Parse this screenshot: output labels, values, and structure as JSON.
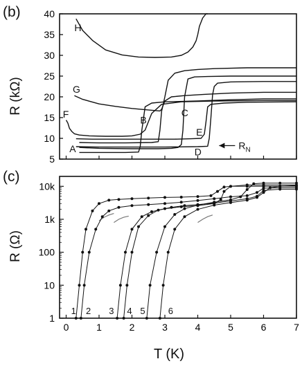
{
  "figure": {
    "panel_b_label": "(b)",
    "panel_c_label": "(c)"
  },
  "chart_data": [
    {
      "type": "line",
      "panel": "(b)",
      "xlabel": "",
      "ylabel": "R (kΩ)",
      "xlim": [
        -0.2,
        7.0
      ],
      "ylim": [
        5,
        40
      ],
      "y_ticks": [
        5,
        10,
        15,
        20,
        25,
        30,
        35,
        40
      ],
      "y_tick_labels": [
        "5",
        "10",
        "15",
        "20",
        "25",
        "30",
        "35",
        "40"
      ],
      "grid": false,
      "series": [
        {
          "name": "H",
          "x": [
            0.3,
            0.5,
            0.8,
            1.2,
            1.7,
            2.2,
            2.7,
            3.2,
            3.5,
            3.7,
            3.85,
            3.95,
            4.0,
            4.05,
            4.15,
            4.25,
            4.3
          ],
          "y": [
            38.8,
            36.0,
            33.6,
            31.3,
            30.1,
            29.6,
            29.5,
            29.6,
            30.0,
            30.8,
            32.0,
            33.5,
            35.0,
            37.0,
            39.0,
            40.0,
            40.0
          ]
        },
        {
          "name": "G",
          "x": [
            0.25,
            0.5,
            1.0,
            1.5,
            2.0,
            2.4,
            2.7,
            2.85,
            2.9,
            3.0,
            3.2,
            3.6,
            4.2,
            5.0,
            6.0,
            7.0
          ],
          "y": [
            20.3,
            19.4,
            18.3,
            17.7,
            17.2,
            16.9,
            16.7,
            16.6,
            17.0,
            19.0,
            20.0,
            20.3,
            20.6,
            20.9,
            21.1,
            21.1
          ]
        },
        {
          "name": "F",
          "x": [
            0.0,
            0.05,
            0.1,
            0.18,
            0.25,
            0.4,
            0.7,
            1.2,
            1.7,
            2.0,
            2.25,
            2.4,
            2.6,
            2.9,
            3.5,
            4.5,
            6.0,
            7.0
          ],
          "y": [
            14.4,
            13.7,
            12.4,
            11.6,
            11.1,
            10.8,
            10.6,
            10.5,
            10.5,
            10.6,
            11.0,
            12.0,
            16.0,
            18.2,
            18.8,
            19.0,
            19.1,
            19.1
          ]
        },
        {
          "name": "E",
          "x": [
            0.3,
            0.8,
            1.5,
            2.2,
            2.8,
            3.3,
            3.8,
            4.1,
            4.2,
            4.25,
            4.3,
            4.4,
            4.8,
            5.5,
            7.0
          ],
          "y": [
            9.9,
            9.8,
            9.8,
            9.8,
            9.8,
            9.8,
            9.9,
            10.0,
            11.0,
            14.0,
            17.6,
            18.2,
            18.5,
            18.7,
            18.8
          ]
        },
        {
          "name": "D",
          "x": [
            0.3,
            1.0,
            2.0,
            3.0,
            4.0,
            4.3,
            4.35,
            4.4,
            4.45,
            4.5,
            4.6,
            5.0,
            6.0,
            7.0
          ],
          "y": [
            8.0,
            7.9,
            7.9,
            7.9,
            8.0,
            8.1,
            10.0,
            15.0,
            20.5,
            22.5,
            23.3,
            23.6,
            23.7,
            23.7
          ]
        },
        {
          "name": "C",
          "x": [
            0.4,
            1.0,
            2.0,
            2.8,
            3.2,
            3.4,
            3.5,
            3.55,
            3.6,
            3.7,
            3.9,
            4.3,
            5.0,
            6.0,
            7.0
          ],
          "y": [
            7.8,
            7.6,
            7.5,
            7.5,
            7.6,
            7.8,
            8.5,
            12.0,
            20.0,
            24.3,
            24.8,
            24.9,
            25.0,
            25.0,
            25.0
          ]
        },
        {
          "name": "B",
          "x": [
            0.4,
            1.0,
            1.8,
            2.6,
            2.8,
            2.85,
            2.9,
            3.0,
            3.1,
            3.3,
            3.6,
            4.0,
            4.5,
            5.5,
            7.0
          ],
          "y": [
            9.0,
            8.9,
            8.9,
            9.0,
            9.2,
            12.0,
            16.5,
            20.0,
            24.0,
            25.7,
            26.3,
            26.6,
            26.8,
            27.0,
            27.0
          ]
        },
        {
          "name": "A",
          "x": [
            0.4,
            1.0,
            1.8,
            2.2,
            2.25,
            2.3,
            2.4,
            2.6,
            3.0,
            4.0,
            5.0,
            6.0,
            7.0
          ],
          "y": [
            6.6,
            6.6,
            6.6,
            6.7,
            8.0,
            12.0,
            17.6,
            18.5,
            18.8,
            19.0,
            19.3,
            19.5,
            19.5
          ]
        }
      ],
      "curve_labels": [
        "H",
        "G",
        "F",
        "E",
        "D",
        "C",
        "B",
        "A"
      ],
      "annotation": "RN"
    },
    {
      "type": "line",
      "panel": "(c)",
      "xlabel": "T  (K)",
      "ylabel": "R  (Ω)",
      "xlim": [
        -0.2,
        7.0
      ],
      "ylim": [
        1,
        20000
      ],
      "y_scale": "log",
      "x_ticks": [
        0,
        1,
        2,
        3,
        4,
        5,
        6,
        7
      ],
      "x_tick_labels": [
        "0",
        "1",
        "2",
        "3",
        "4",
        "5",
        "6",
        "7"
      ],
      "y_ticks": [
        1,
        10,
        100,
        1000,
        10000
      ],
      "y_tick_labels": [
        "1",
        "10",
        "100",
        "1k",
        "10k"
      ],
      "grid": false,
      "series": [
        {
          "name": "1",
          "x": [
            0.3,
            0.4,
            0.5,
            0.6,
            0.8,
            1.0,
            1.3,
            1.6,
            2.0,
            2.5,
            3.0,
            3.5,
            4.0,
            4.4,
            4.6,
            4.8,
            5.0,
            5.5,
            6.0,
            7.0
          ],
          "y": [
            1,
            10,
            100,
            500,
            1800,
            3000,
            3800,
            4000,
            4200,
            4400,
            4600,
            4700,
            4900,
            5200,
            7000,
            9500,
            10000,
            10000,
            10000,
            10000
          ]
        },
        {
          "name": "2",
          "x": [
            0.45,
            0.55,
            0.7,
            0.9,
            1.1,
            1.3,
            1.6,
            2.0,
            2.5,
            3.0,
            3.5,
            4.0,
            4.5,
            5.0,
            5.5,
            5.8,
            6.0,
            6.5,
            7.0
          ],
          "y": [
            1,
            10,
            100,
            500,
            1200,
            1800,
            2300,
            2600,
            2800,
            3000,
            3300,
            3700,
            4200,
            4800,
            5200,
            6500,
            8800,
            9000,
            9000
          ]
        },
        {
          "name": "3",
          "x": [
            1.55,
            1.65,
            1.8,
            2.0,
            2.3,
            2.6,
            3.0,
            3.5,
            4.0,
            4.5,
            4.7,
            4.8,
            5.0,
            5.5,
            6.0,
            7.0
          ],
          "y": [
            1,
            10,
            100,
            500,
            1200,
            1700,
            2100,
            2400,
            2600,
            3000,
            4000,
            7000,
            10000,
            11000,
            11000,
            11000
          ]
        },
        {
          "name": "4",
          "x": [
            1.75,
            1.85,
            2.0,
            2.2,
            2.5,
            2.8,
            3.2,
            3.6,
            4.0,
            4.5,
            5.0,
            5.5,
            5.8,
            6.0,
            6.5,
            7.0
          ],
          "y": [
            1,
            10,
            100,
            600,
            1300,
            1900,
            2300,
            2600,
            2800,
            3100,
            3600,
            4200,
            5000,
            7500,
            8200,
            8200
          ]
        },
        {
          "name": "5",
          "x": [
            2.45,
            2.55,
            2.75,
            3.0,
            3.3,
            3.6,
            4.0,
            4.5,
            5.0,
            5.3,
            5.5,
            5.7,
            6.0,
            6.5,
            7.0
          ],
          "y": [
            1,
            10,
            100,
            600,
            1400,
            2100,
            2700,
            3300,
            3900,
            4800,
            8000,
            12000,
            12500,
            12500,
            12500
          ]
        },
        {
          "name": "6",
          "x": [
            2.85,
            2.95,
            3.1,
            3.3,
            3.6,
            4.0,
            4.5,
            5.0,
            5.5,
            5.8,
            6.0,
            6.2,
            6.5,
            7.0
          ],
          "y": [
            1,
            10,
            100,
            500,
            1200,
            2000,
            2700,
            3200,
            3800,
            4600,
            6500,
            9000,
            10000,
            10500
          ]
        }
      ],
      "thin_lines": [
        {
          "x": [
            1.0,
            1.15,
            1.3,
            1.45
          ],
          "y": [
            900,
            1150,
            1350,
            1500
          ]
        },
        {
          "x": [
            1.45,
            1.6,
            1.75,
            1.9
          ],
          "y": [
            800,
            1000,
            1150,
            1250
          ]
        },
        {
          "x": [
            4.0,
            4.15,
            4.3,
            4.45
          ],
          "y": [
            800,
            1000,
            1200,
            1350
          ]
        }
      ],
      "curve_labels": [
        "1",
        "2",
        "3",
        "4",
        "5",
        "6"
      ]
    }
  ]
}
